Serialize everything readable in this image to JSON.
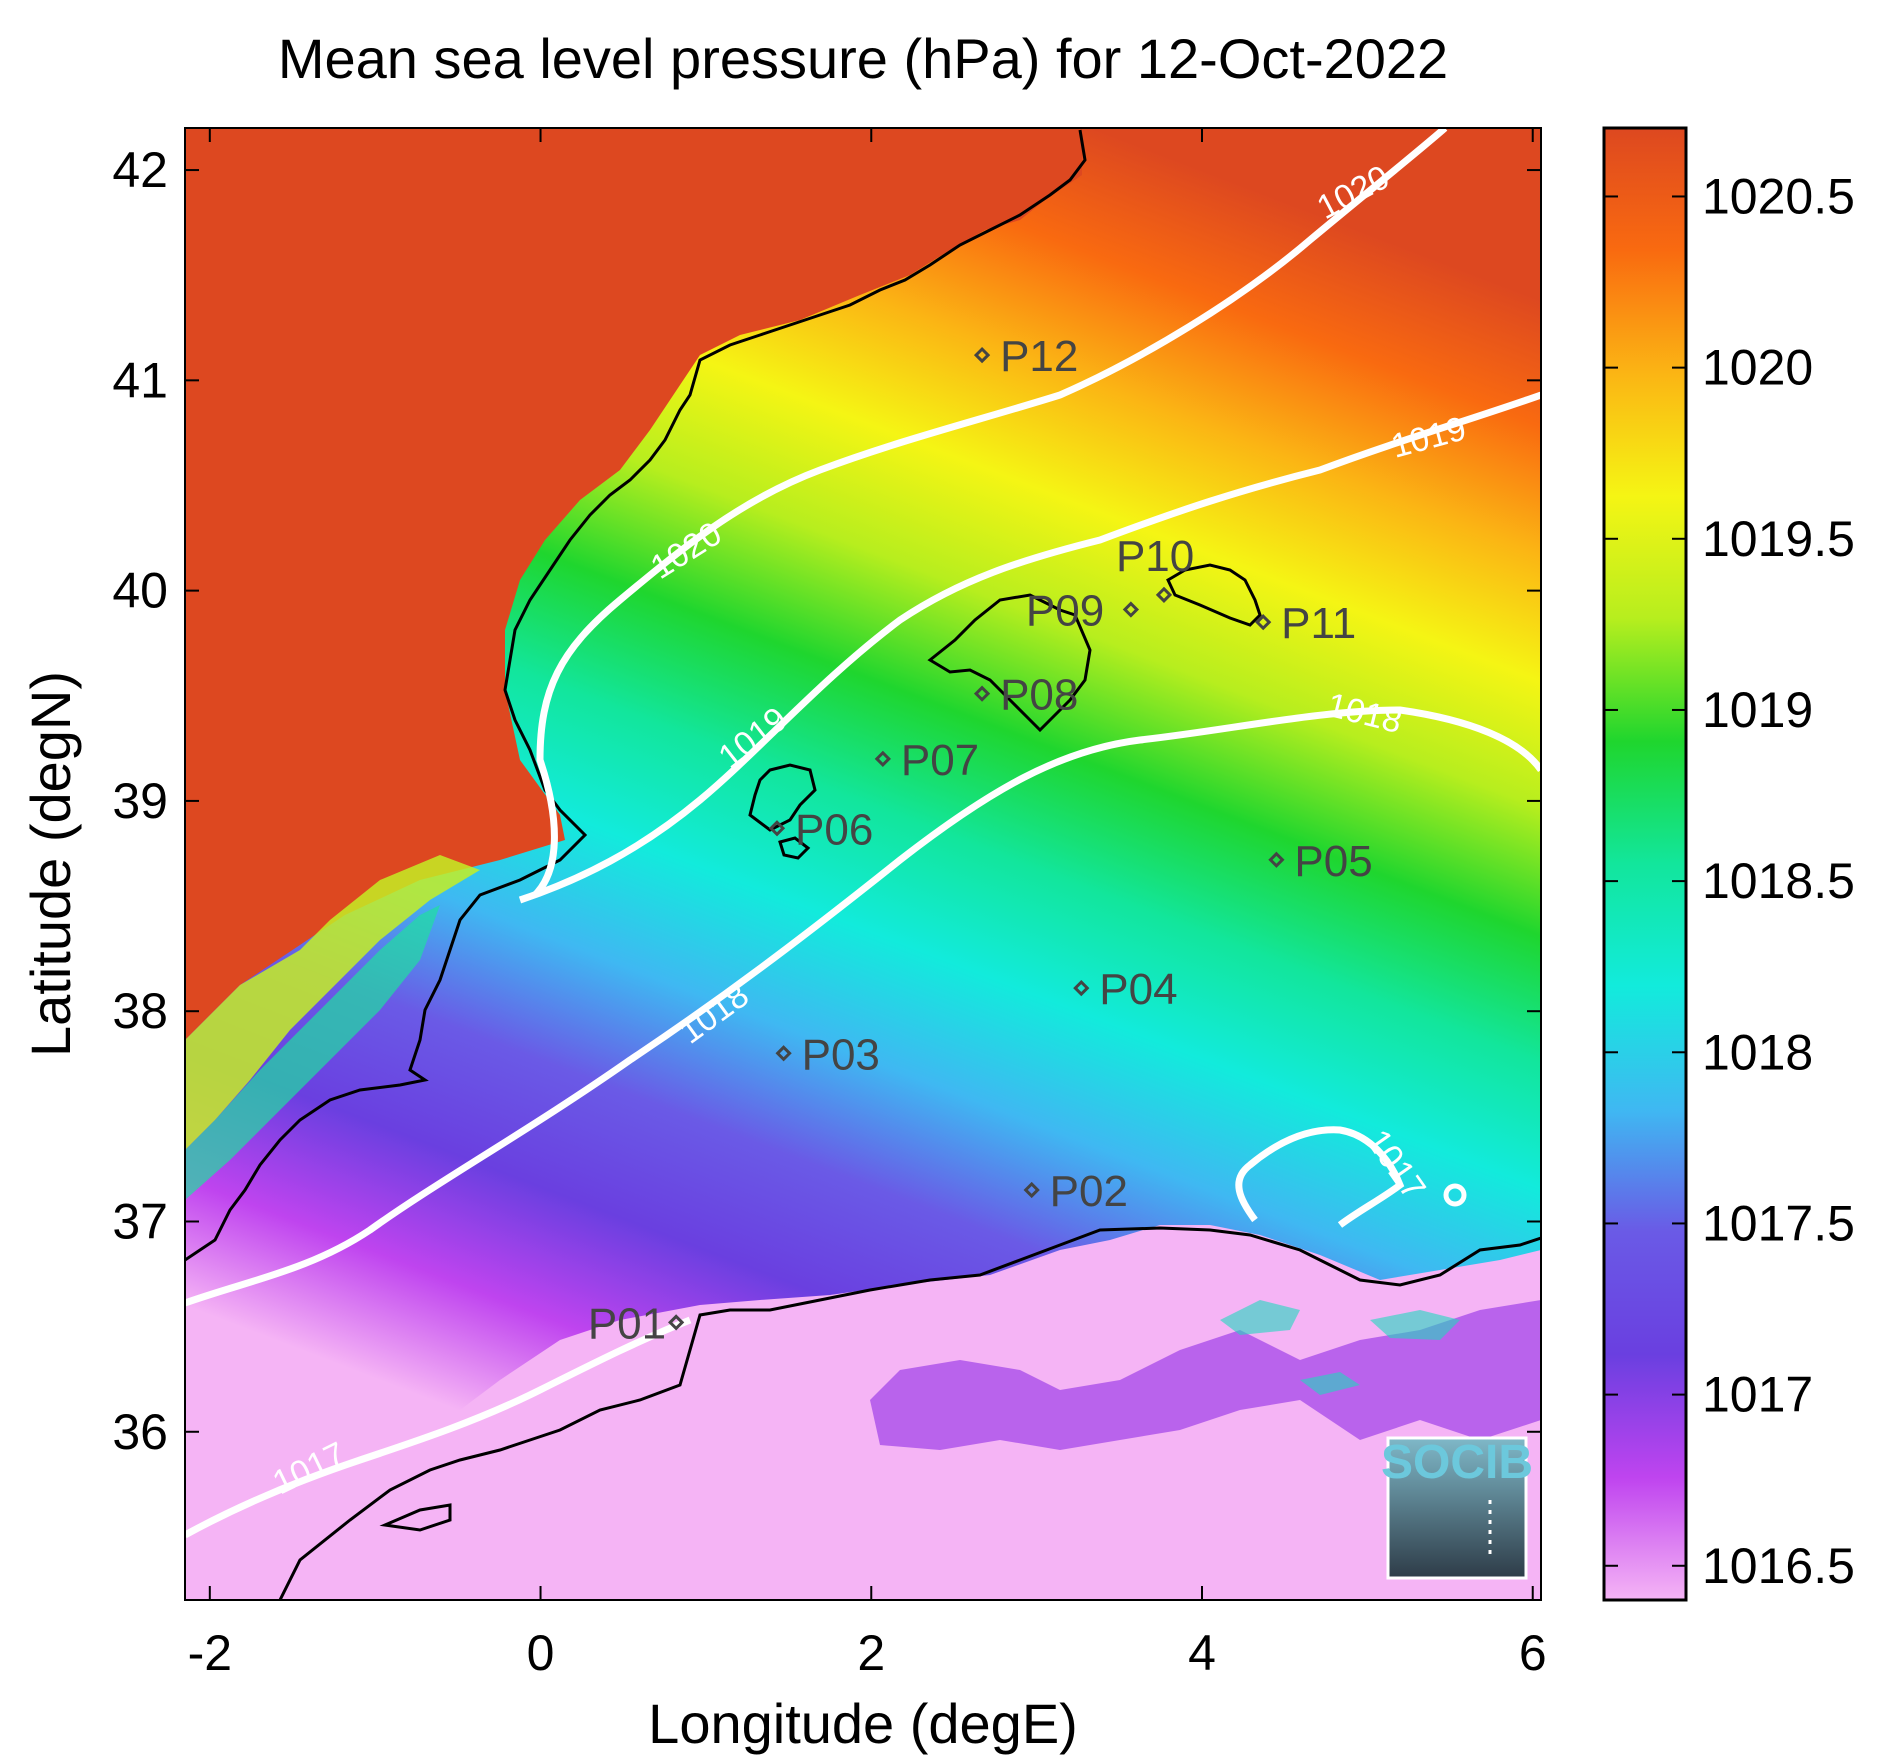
{
  "chart_data": {
    "type": "heatmap",
    "title": "Mean sea level pressure (hPa) for 12-Oct-2022",
    "xlabel": "Longitude (degE)",
    "ylabel": "Latitude (degN)",
    "xlim": [
      -2.15,
      6.05
    ],
    "ylim": [
      35.2,
      42.2
    ],
    "x_ticks": [
      -2,
      0,
      2,
      4,
      6
    ],
    "y_ticks": [
      36,
      37,
      38,
      39,
      40,
      41,
      42
    ],
    "colorbar": {
      "range": [
        1016.4,
        1020.7
      ],
      "ticks": [
        1016.5,
        1017,
        1017.5,
        1018,
        1018.5,
        1019,
        1019.5,
        1020,
        1020.5
      ],
      "colors": [
        "#f5b4f5",
        "#bf44ef",
        "#6a3fe0",
        "#6a5ae6",
        "#3fb8f2",
        "#12ebdc",
        "#12e69c",
        "#1fd62e",
        "#b7ee1e",
        "#f5f514",
        "#fbb514",
        "#f96a10",
        "#dd4820"
      ]
    },
    "contours": [
      {
        "level": 1017,
        "label": "1017"
      },
      {
        "level": 1018,
        "label": "1018"
      },
      {
        "level": 1019,
        "label": "1019"
      },
      {
        "level": 1020,
        "label": "1020"
      }
    ],
    "stations": [
      {
        "name": "P01",
        "lon": 0.82,
        "lat": 36.52
      },
      {
        "name": "P02",
        "lon": 2.97,
        "lat": 37.15
      },
      {
        "name": "P03",
        "lon": 1.47,
        "lat": 37.8
      },
      {
        "name": "P04",
        "lon": 3.27,
        "lat": 38.11
      },
      {
        "name": "P05",
        "lon": 4.45,
        "lat": 38.72
      },
      {
        "name": "P06",
        "lon": 1.43,
        "lat": 38.87
      },
      {
        "name": "P07",
        "lon": 2.07,
        "lat": 39.2
      },
      {
        "name": "P08",
        "lon": 2.67,
        "lat": 39.51
      },
      {
        "name": "P09",
        "lon": 3.57,
        "lat": 39.91
      },
      {
        "name": "P10",
        "lon": 3.77,
        "lat": 39.98
      },
      {
        "name": "P11",
        "lon": 4.37,
        "lat": 39.85
      },
      {
        "name": "P12",
        "lon": 2.67,
        "lat": 41.12
      }
    ],
    "grid": false
  },
  "logo": {
    "text": "SOCIB"
  }
}
